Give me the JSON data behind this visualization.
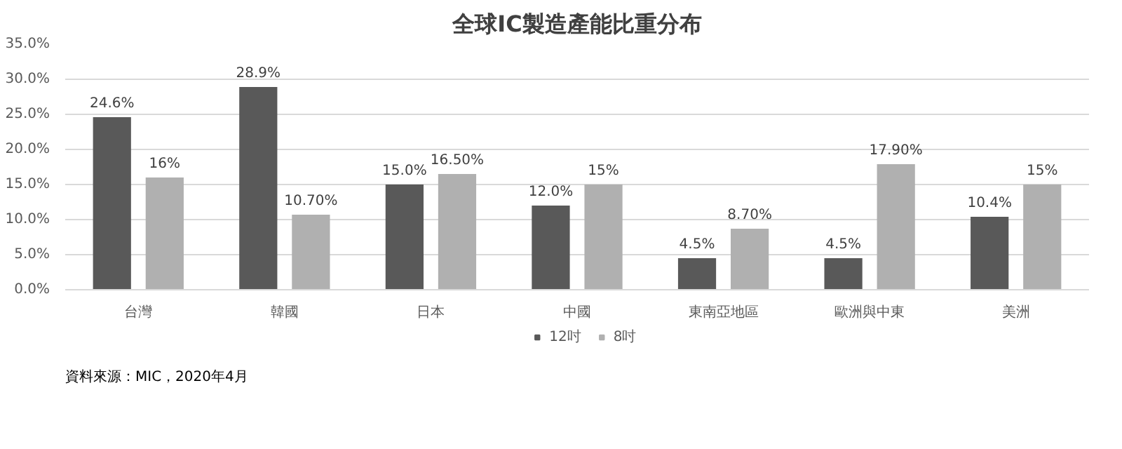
{
  "chart_data": {
    "type": "bar",
    "title": "全球IC製造產能比重分布",
    "categories": [
      "台灣",
      "韓國",
      "日本",
      "中國",
      "東南亞地區",
      "歐洲與中東",
      "美洲"
    ],
    "series": [
      {
        "name": "12吋",
        "color": "#595959",
        "values": [
          24.6,
          28.9,
          15.0,
          12.0,
          4.5,
          4.5,
          10.4
        ],
        "value_labels": [
          "24.6%",
          "28.9%",
          "15.0%",
          "12.0%",
          "4.5%",
          "4.5%",
          "10.4%"
        ]
      },
      {
        "name": "8吋",
        "color": "#b0b0b0",
        "values": [
          16,
          10.7,
          16.5,
          15,
          8.7,
          17.9,
          15
        ],
        "value_labels": [
          "16%",
          "10.70%",
          "16.50%",
          "15%",
          "8.70%",
          "17.90%",
          "15%"
        ]
      }
    ],
    "ylim": [
      0,
      35
    ],
    "yticks": [
      {
        "value": 0,
        "label": "0.0%"
      },
      {
        "value": 5,
        "label": "5.0%"
      },
      {
        "value": 10,
        "label": "10.0%"
      },
      {
        "value": 15,
        "label": "15.0%"
      },
      {
        "value": 20,
        "label": "20.0%"
      },
      {
        "value": 25,
        "label": "25.0%"
      },
      {
        "value": 30,
        "label": "30.0%"
      },
      {
        "value": 35,
        "label": "35.0%"
      }
    ],
    "grid": "y",
    "legend": "bottom",
    "annotations": [
      "資料來源：MIC，2020年4月"
    ]
  }
}
